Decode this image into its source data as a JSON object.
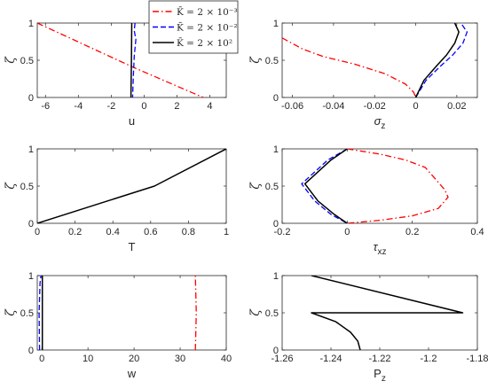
{
  "chart_data": [
    {
      "type": "line",
      "xlabel": "u",
      "ylabel": "ζ",
      "xlim": [
        -6.5,
        5
      ],
      "ylim": [
        0,
        1
      ],
      "xticks": [
        -6,
        -4,
        -2,
        0,
        2,
        4
      ],
      "xtick_labels": [
        "-6",
        "-4",
        "-2",
        "0",
        "2",
        "4"
      ],
      "yticks": [
        0,
        0.5,
        1
      ],
      "ytick_labels": [
        "0",
        "0.5",
        "1"
      ],
      "series": [
        {
          "name": "K̄ = 2 × 10⁻³",
          "style": "dashdot",
          "color": "#ff0000",
          "points": [
            [
              -6.5,
              1
            ],
            [
              -0.6,
              0.4
            ],
            [
              3.6,
              0
            ]
          ]
        },
        {
          "name": "K̄ = 2 × 10⁻²",
          "style": "dashed",
          "color": "#0000ff",
          "points": [
            [
              -0.55,
              1
            ],
            [
              -0.6,
              0.9
            ],
            [
              -0.5,
              0.78
            ],
            [
              -0.6,
              0.55
            ],
            [
              -0.65,
              0.3
            ],
            [
              -0.7,
              0
            ]
          ]
        },
        {
          "name": "K̄ = 2 × 10²",
          "style": "solid",
          "color": "#000000",
          "points": [
            [
              -0.75,
              1
            ],
            [
              -0.77,
              0.5
            ],
            [
              -0.8,
              0
            ]
          ]
        }
      ]
    },
    {
      "type": "line",
      "xlabel": "σz",
      "ylabel": "ζ",
      "xlim": [
        -0.065,
        0.03
      ],
      "ylim": [
        0,
        1
      ],
      "xticks": [
        -0.06,
        -0.04,
        -0.02,
        0,
        0.02
      ],
      "xtick_labels": [
        "-0.06",
        "-0.04",
        "-0.02",
        "0",
        "0.02"
      ],
      "yticks": [
        0,
        0.5,
        1
      ],
      "ytick_labels": [
        "0",
        "0.5",
        "1"
      ],
      "series": [
        {
          "name": "K̄ = 2 × 10⁻³",
          "style": "dashdot",
          "color": "#ff0000",
          "points": [
            [
              -0.065,
              0.8
            ],
            [
              -0.055,
              0.65
            ],
            [
              -0.045,
              0.55
            ],
            [
              -0.03,
              0.45
            ],
            [
              -0.015,
              0.32
            ],
            [
              -0.005,
              0.18
            ],
            [
              -0.001,
              0.07
            ],
            [
              0,
              0
            ]
          ]
        },
        {
          "name": "K̄ = 2 × 10⁻²",
          "style": "dashed",
          "color": "#0000ff",
          "points": [
            [
              0,
              0
            ],
            [
              0.005,
              0.23
            ],
            [
              0.012,
              0.42
            ],
            [
              0.018,
              0.57
            ],
            [
              0.023,
              0.73
            ],
            [
              0.025,
              0.88
            ],
            [
              0.022,
              1
            ]
          ]
        },
        {
          "name": "K̄ = 2 × 10²",
          "style": "solid",
          "color": "#000000",
          "points": [
            [
              0,
              0
            ],
            [
              0.004,
              0.23
            ],
            [
              0.01,
              0.42
            ],
            [
              0.015,
              0.57
            ],
            [
              0.019,
              0.73
            ],
            [
              0.021,
              0.88
            ],
            [
              0.019,
              1
            ]
          ]
        }
      ]
    },
    {
      "type": "line",
      "xlabel": "T",
      "ylabel": "ζ",
      "xlim": [
        0,
        1
      ],
      "ylim": [
        0,
        1
      ],
      "xticks": [
        0,
        0.2,
        0.4,
        0.6,
        0.8,
        1
      ],
      "xtick_labels": [
        "0",
        "0.2",
        "0.4",
        "0.6",
        "0.8",
        "1"
      ],
      "yticks": [
        0,
        0.5,
        1
      ],
      "ytick_labels": [
        "0",
        "0.5",
        "1"
      ],
      "series": [
        {
          "style": "solid",
          "color": "#000000",
          "points": [
            [
              0,
              0
            ],
            [
              0.62,
              0.5
            ],
            [
              1,
              1
            ]
          ]
        }
      ]
    },
    {
      "type": "line",
      "xlabel": "τxz",
      "ylabel": "ζ",
      "xlim": [
        -0.2,
        0.4
      ],
      "ylim": [
        0,
        1
      ],
      "xticks": [
        -0.2,
        0,
        0.2,
        0.4
      ],
      "xtick_labels": [
        "-0.2",
        "0",
        "0.2",
        "0.4"
      ],
      "yticks": [
        0,
        0.5,
        1
      ],
      "ytick_labels": [
        "0",
        "0.5",
        "1"
      ],
      "series": [
        {
          "name": "K̄ = 2 × 10⁻³",
          "style": "dashdot",
          "color": "#ff0000",
          "points": [
            [
              0,
              1
            ],
            [
              0.1,
              0.93
            ],
            [
              0.18,
              0.85
            ],
            [
              0.24,
              0.75
            ],
            [
              0.27,
              0.6
            ],
            [
              0.3,
              0.45
            ],
            [
              0.31,
              0.35
            ],
            [
              0.28,
              0.2
            ],
            [
              0.2,
              0.1
            ],
            [
              0.1,
              0.04
            ],
            [
              0,
              0
            ]
          ]
        },
        {
          "name": "K̄ = 2 × 10⁻²",
          "style": "dashed",
          "color": "#0000ff",
          "points": [
            [
              0,
              1
            ],
            [
              -0.06,
              0.85
            ],
            [
              -0.14,
              0.53
            ],
            [
              -0.1,
              0.3
            ],
            [
              -0.05,
              0.12
            ],
            [
              0,
              0
            ]
          ]
        },
        {
          "name": "K̄ = 2 × 10²",
          "style": "solid",
          "color": "#000000",
          "points": [
            [
              0,
              1
            ],
            [
              -0.05,
              0.85
            ],
            [
              -0.13,
              0.53
            ],
            [
              -0.09,
              0.3
            ],
            [
              -0.04,
              0.12
            ],
            [
              0,
              0
            ]
          ]
        }
      ]
    },
    {
      "type": "line",
      "xlabel": "w",
      "ylabel": "ζ",
      "xlim": [
        -1,
        40
      ],
      "ylim": [
        0,
        1
      ],
      "xticks": [
        0,
        10,
        20,
        30,
        40
      ],
      "xtick_labels": [
        "0",
        "10",
        "20",
        "30",
        "40"
      ],
      "yticks": [
        0,
        0.5,
        1
      ],
      "ytick_labels": [
        "0",
        "0.5",
        "1"
      ],
      "series": [
        {
          "name": "K̄ = 2 × 10⁻³",
          "style": "dashdot",
          "color": "#ff0000",
          "points": [
            [
              33.3,
              0
            ],
            [
              33.5,
              0.5
            ],
            [
              33.3,
              1
            ]
          ]
        },
        {
          "name": "K̄ = 2 × 10⁻²",
          "style": "dashed",
          "color": "#0000ff",
          "points": [
            [
              -0.5,
              0
            ],
            [
              -0.6,
              0.5
            ],
            [
              -0.4,
              0.9
            ],
            [
              -0.2,
              1
            ]
          ]
        },
        {
          "name": "K̄ = 2 × 10²",
          "style": "solid",
          "color": "#000000",
          "points": [
            [
              0.1,
              0
            ],
            [
              0.1,
              1
            ]
          ]
        }
      ]
    },
    {
      "type": "line",
      "xlabel": "Pz",
      "ylabel": "ζ",
      "xlim": [
        -1.26,
        -1.18
      ],
      "ylim": [
        0,
        1
      ],
      "xticks": [
        -1.26,
        -1.24,
        -1.22,
        -1.2,
        -1.18
      ],
      "xtick_labels": [
        "-1.26",
        "-1.24",
        "-1.22",
        "-1.2",
        "-1.18"
      ],
      "yticks": [
        0,
        0.5,
        1
      ],
      "ytick_labels": [
        "0",
        "0.5",
        "1"
      ],
      "series": [
        {
          "style": "solid",
          "color": "#000000",
          "points": [
            [
              -1.248,
              1
            ],
            [
              -1.186,
              0.5
            ],
            [
              -1.248,
              0.5
            ],
            [
              -1.238,
              0.38
            ],
            [
              -1.232,
              0.24
            ],
            [
              -1.229,
              0.12
            ],
            [
              -1.228,
              0
            ]
          ]
        }
      ]
    }
  ],
  "legend": {
    "placement": "top-center",
    "entries": [
      {
        "label": "K̄ = 2 × 10⁻³",
        "style": "dashdot",
        "color": "#ff0000"
      },
      {
        "label": "K̄ = 2 × 10⁻²",
        "style": "dashed",
        "color": "#0000ff"
      },
      {
        "label": "K̄ = 2 × 10²",
        "style": "solid",
        "color": "#000000"
      }
    ]
  }
}
